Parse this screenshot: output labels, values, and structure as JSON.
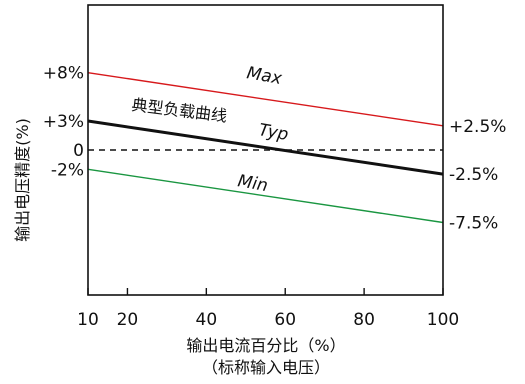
{
  "chart_data": {
    "type": "line",
    "xlabel": "输出电流百分比（%）",
    "xlabel_sub": "（标称输入电压）",
    "ylabel": "输出电压精度(%)",
    "xlim": [
      10,
      100
    ],
    "ylim": [
      -15,
      15
    ],
    "x_ticks": [
      10,
      20,
      40,
      60,
      80,
      100
    ],
    "x_tick_labels": [
      "10",
      "20",
      "40",
      "60",
      "80",
      "100"
    ],
    "left_tick_values": [
      8,
      3,
      0,
      -2
    ],
    "left_tick_labels": [
      "+8%",
      "+3%",
      "0",
      "-2%"
    ],
    "right_tick_values": [
      2.5,
      -2.5,
      -7.5
    ],
    "right_tick_labels": [
      "+2.5%",
      "-2.5%",
      "-7.5%"
    ],
    "grid": false,
    "legend": "none",
    "series": [
      {
        "name": "Max",
        "x": [
          10,
          100
        ],
        "values": [
          8,
          2.5
        ],
        "color": "#d7191c",
        "style": "solid",
        "weight": "thin"
      },
      {
        "name": "Typ",
        "x": [
          10,
          100
        ],
        "values": [
          3,
          -2.5
        ],
        "color": "#111111",
        "style": "solid",
        "weight": "bold"
      },
      {
        "name": "Min",
        "x": [
          10,
          100
        ],
        "values": [
          -2,
          -7.5
        ],
        "color": "#1a9641",
        "style": "solid",
        "weight": "thin"
      },
      {
        "name": "",
        "x": [
          10,
          100
        ],
        "values": [
          0,
          0
        ],
        "color": "#111111",
        "style": "dashed",
        "weight": "thin"
      }
    ],
    "annotations": {
      "max_label": "Max",
      "typ_curve_label": "典型负载曲线",
      "typ_label": "Typ",
      "min_label": "Min"
    }
  }
}
